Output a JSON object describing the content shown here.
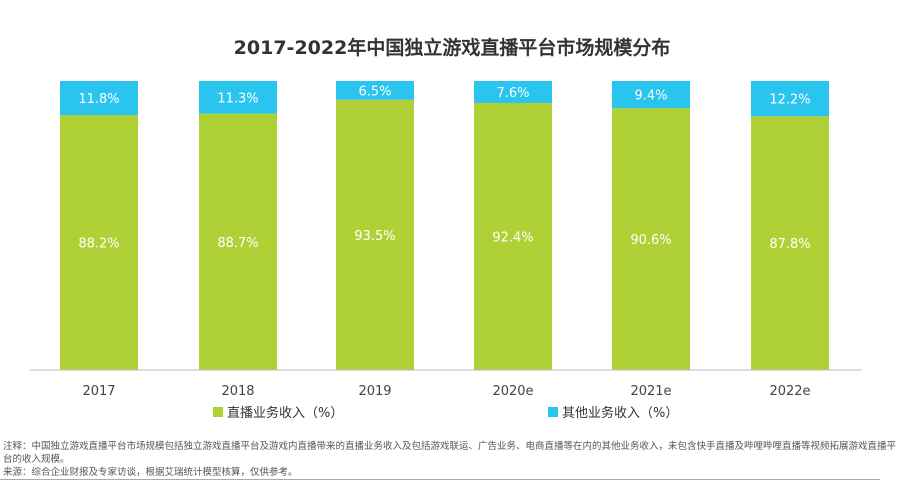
{
  "chart_data": {
    "type": "bar",
    "stacked": true,
    "title": "2017-2022年中国独立游戏直播平台市场规模分布",
    "categories": [
      "2017",
      "2018",
      "2019",
      "2020e",
      "2021e",
      "2022e"
    ],
    "series": [
      {
        "name": "直播业务收入（%）",
        "color": "#b0d136",
        "values": [
          88.2,
          88.7,
          93.5,
          92.4,
          90.6,
          87.8
        ]
      },
      {
        "name": "其他业务收入（%）",
        "color": "#2ac5ef",
        "values": [
          11.8,
          11.3,
          6.5,
          7.6,
          9.4,
          12.2
        ]
      }
    ],
    "ylim": [
      0,
      100
    ],
    "unit": "%",
    "grid": false,
    "legend": "bottom"
  },
  "notes": {
    "note": "注释：中国独立游戏直播平台市场规模包括独立游戏直播平台及游戏内直播带来的直播业务收入及包括游戏联运、广告业务、电商直播等在内的其他业务收入，未包含快手直播及哔哩哔哩直播等视频拓展游戏直播平台的收入规模。",
    "source": "来源：综合企业财报及专家访谈，根据艾瑞统计模型核算，仅供参考。"
  }
}
